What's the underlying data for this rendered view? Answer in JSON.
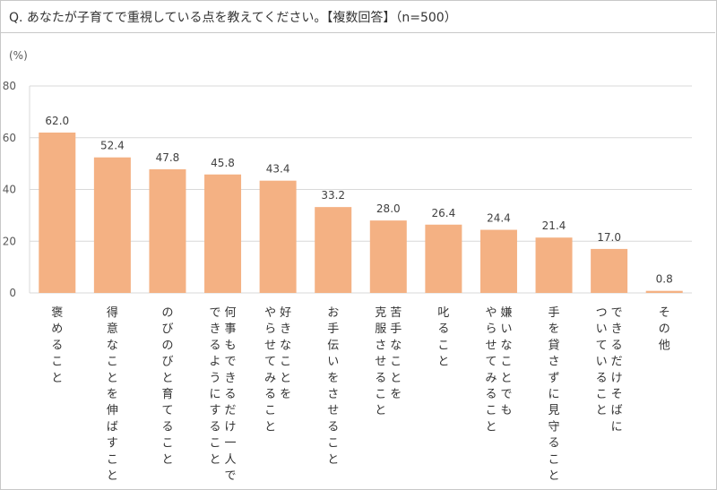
{
  "question": {
    "title": "Q. あなたが子育てで重視している点を教えてください。【複数回答】（n=500）"
  },
  "chart_data": {
    "type": "bar",
    "unit_label": "(%)",
    "ylim": [
      0,
      80
    ],
    "yticks": [
      0,
      20,
      40,
      60,
      80
    ],
    "grid": true,
    "bar_color": "#f4b183",
    "grid_color": "#d9d9d9",
    "categories": [
      [
        "褒めること"
      ],
      [
        "得意なことを伸ばすこと"
      ],
      [
        "のびのびと育てること"
      ],
      [
        "何事もできるだけ一人で",
        "できるようにすること"
      ],
      [
        "好きなことを",
        "やらせてみること"
      ],
      [
        "お手伝いをさせること"
      ],
      [
        "苦手なことを",
        "克服させること"
      ],
      [
        "叱ること"
      ],
      [
        "嫌いなことでも",
        "やらせてみること"
      ],
      [
        "手を貸さずに見守ること"
      ],
      [
        "できるだけそばに",
        "ついていること"
      ],
      [
        "その他"
      ]
    ],
    "values": [
      62.0,
      52.4,
      47.8,
      45.8,
      43.4,
      33.2,
      28.0,
      26.4,
      24.4,
      21.4,
      17.0,
      0.8
    ],
    "value_labels": [
      "62.0",
      "52.4",
      "47.8",
      "45.8",
      "43.4",
      "33.2",
      "28.0",
      "26.4",
      "24.4",
      "21.4",
      "17.0",
      "0.8"
    ]
  }
}
